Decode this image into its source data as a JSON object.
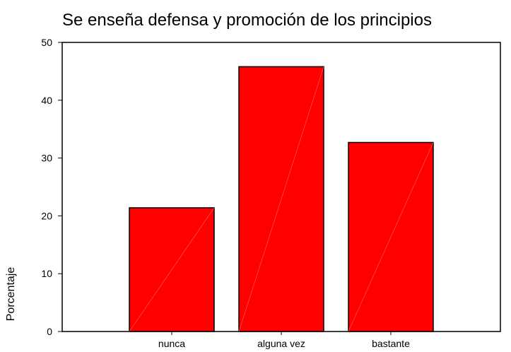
{
  "chart_data": {
    "type": "bar",
    "title": "Se enseña defensa y promoción de los principios",
    "xlabel": "",
    "ylabel": "Porcentaje",
    "categories": [
      "nunca",
      "alguna vez",
      "bastante"
    ],
    "values": [
      21.4,
      45.8,
      32.7
    ],
    "ylim": [
      0,
      50
    ],
    "yticks": [
      0,
      10,
      20,
      30,
      40,
      50
    ],
    "grid": false,
    "legend": "none",
    "colors": {
      "bar_fill": "#ff0000",
      "bar_stroke": "#000000",
      "axis": "#000000",
      "background": "#ffffff"
    }
  }
}
